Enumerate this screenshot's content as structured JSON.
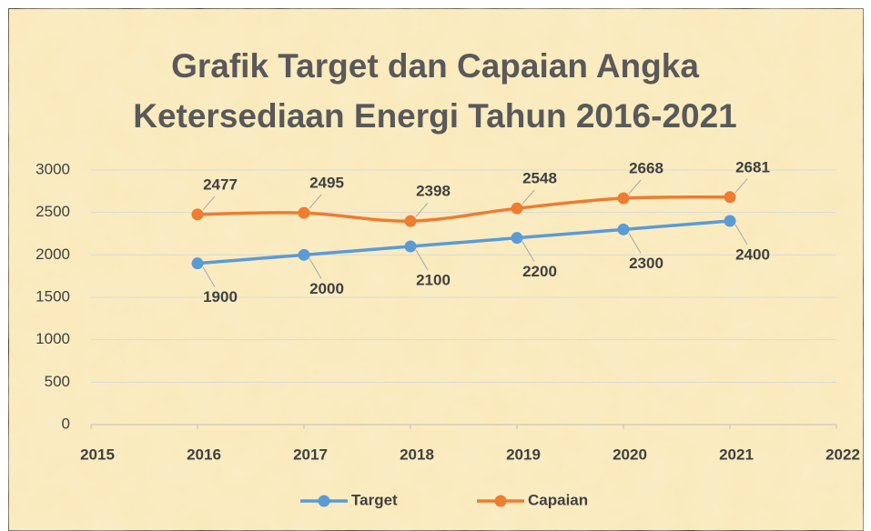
{
  "chart_data": {
    "type": "line",
    "title": [
      "Grafik Target dan Capaian Angka",
      "Ketersediaan Energi Tahun 2016-2021"
    ],
    "x": [
      2016,
      2017,
      2018,
      2019,
      2020,
      2021
    ],
    "series": [
      {
        "name": "Target",
        "color": "#5b9bd5",
        "values": [
          1900,
          2000,
          2100,
          2200,
          2300,
          2400
        ]
      },
      {
        "name": "Capaian",
        "color": "#ed7d31",
        "values": [
          2477,
          2495,
          2398,
          2548,
          2668,
          2681
        ]
      }
    ],
    "xlim": [
      2015,
      2022
    ],
    "xticks": [
      2015,
      2016,
      2017,
      2018,
      2019,
      2020,
      2021,
      2022
    ],
    "ylim": [
      0,
      3000
    ],
    "yticks": [
      0,
      500,
      1000,
      1500,
      2000,
      2500,
      3000
    ],
    "grid": true,
    "legend": "bottom"
  }
}
